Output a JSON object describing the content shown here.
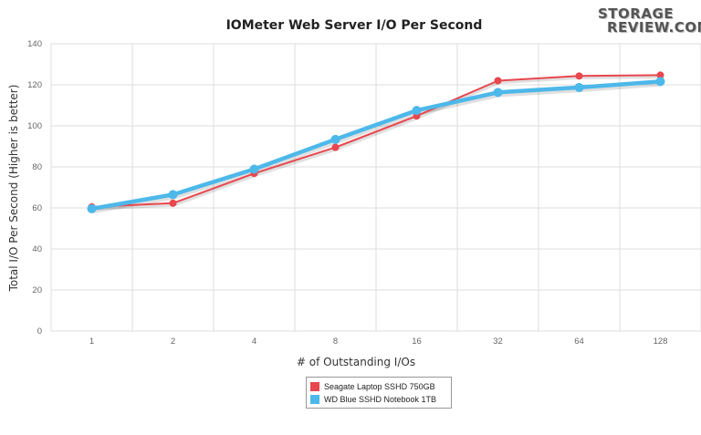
{
  "chart_data": {
    "type": "line",
    "title": "IOMeter Web Server I/O Per Second",
    "xlabel": "# of Outstanding I/Os",
    "ylabel": "Total I/O Per Second (Higher is better)",
    "categories": [
      "1",
      "2",
      "4",
      "8",
      "16",
      "32",
      "64",
      "128"
    ],
    "ylim": [
      0,
      140
    ],
    "yticks": [
      0,
      20,
      40,
      60,
      80,
      100,
      120,
      140
    ],
    "grid": true,
    "legend_position": "bottom",
    "series": [
      {
        "name": "Seagate Laptop SSHD 750GB",
        "color": "#e8474e",
        "values": [
          60.5,
          62.3,
          76.8,
          89.5,
          104.8,
          122.0,
          124.3,
          124.7
        ]
      },
      {
        "name": "WD Blue SSHD Notebook 1TB",
        "color": "#4db8ea",
        "values": [
          59.6,
          66.5,
          78.9,
          93.4,
          107.5,
          116.3,
          118.7,
          121.6
        ]
      }
    ]
  },
  "logo": {
    "line1": "STORAGE",
    "line2": "REVIEW.COM"
  }
}
